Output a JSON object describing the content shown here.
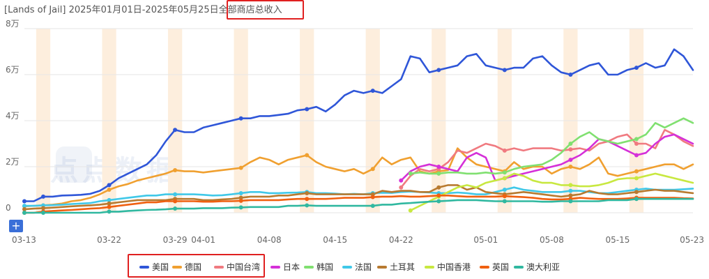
{
  "title": {
    "prefix": "[Lands of Jail] 2025年01月01日-2025年05月25日",
    "metric": "全部商店总收入"
  },
  "controls": {
    "zoom_label": "+"
  },
  "watermark": "点点数据",
  "colors": {
    "highlight_box": "#e02020",
    "weekend_band": "#fdeedd",
    "grid": "#e6e6e6",
    "axis_text": "#666666",
    "button": "#3a6fd8"
  },
  "chart_data": {
    "type": "line",
    "title": "全部商店总收入",
    "x": [
      "03-13",
      "03-14",
      "03-15",
      "03-16",
      "03-17",
      "03-18",
      "03-19",
      "03-20",
      "03-21",
      "03-22",
      "03-23",
      "03-24",
      "03-25",
      "03-26",
      "03-27",
      "03-28",
      "03-29",
      "03-30",
      "03-31",
      "04-01",
      "04-02",
      "04-03",
      "04-04",
      "04-05",
      "04-06",
      "04-07",
      "04-08",
      "04-09",
      "04-10",
      "04-11",
      "04-12",
      "04-13",
      "04-14",
      "04-15",
      "04-16",
      "04-17",
      "04-18",
      "04-19",
      "04-20",
      "04-21",
      "04-22",
      "04-23",
      "04-24",
      "04-25",
      "04-26",
      "04-27",
      "04-28",
      "04-29",
      "04-30",
      "05-01",
      "05-02",
      "05-03",
      "05-04",
      "05-05",
      "05-06",
      "05-07",
      "05-08",
      "05-09",
      "05-10",
      "05-11",
      "05-12",
      "05-13",
      "05-14",
      "05-15",
      "05-16",
      "05-17",
      "05-18",
      "05-19",
      "05-20",
      "05-21",
      "05-22",
      "05-23"
    ],
    "x_tick_labels": [
      "03-13",
      "03-22",
      "03-29",
      "04-01",
      "04-08",
      "04-15",
      "04-22",
      "05-01",
      "05-08",
      "05-15",
      "05-23"
    ],
    "y_tick_labels": [
      "0",
      "2万",
      "4万",
      "6万",
      "8万"
    ],
    "ylim": [
      0,
      80000
    ],
    "grid": true,
    "legend_position": "bottom",
    "weekend_bands": [
      "03-15",
      "03-22",
      "03-29",
      "04-05",
      "04-12",
      "04-19",
      "04-26",
      "05-03",
      "05-10",
      "05-17"
    ],
    "series": [
      {
        "name": "美国",
        "color": "#2f56d8",
        "values": [
          5000,
          5000,
          7000,
          7000,
          7500,
          7600,
          7800,
          8200,
          9500,
          12000,
          15000,
          17000,
          19000,
          21000,
          25000,
          31000,
          36000,
          35000,
          35000,
          37000,
          38000,
          39000,
          40000,
          41000,
          41000,
          42000,
          42000,
          42500,
          43000,
          44500,
          45000,
          46000,
          44000,
          47000,
          51000,
          53000,
          52000,
          53000,
          52000,
          55000,
          58000,
          68000,
          67000,
          61000,
          62000,
          63000,
          64000,
          68000,
          69000,
          64000,
          63000,
          62000,
          63000,
          63000,
          67000,
          68000,
          64000,
          61000,
          60000,
          62000,
          64000,
          65000,
          60000,
          60000,
          62000,
          63000,
          65000,
          63000,
          64000,
          71000,
          68000,
          62000
        ]
      },
      {
        "name": "德国",
        "color": "#f0a030",
        "values": [
          2800,
          3000,
          3200,
          3500,
          4000,
          5000,
          5500,
          6500,
          8000,
          10000,
          11500,
          12500,
          14000,
          15000,
          16000,
          17000,
          18500,
          18000,
          18000,
          17500,
          18000,
          18500,
          19000,
          19500,
          22000,
          24000,
          23000,
          21000,
          23000,
          24000,
          25000,
          22000,
          20000,
          19000,
          18000,
          19000,
          17000,
          19000,
          24000,
          21000,
          23000,
          24000,
          18000,
          17000,
          18000,
          18500,
          28000,
          24000,
          21000,
          20000,
          19000,
          18000,
          22000,
          19000,
          20000,
          20000,
          17000,
          19000,
          20000,
          19000,
          21000,
          24000,
          17000,
          16000,
          17000,
          18000,
          19000,
          20000,
          21000,
          21000,
          19000,
          21000
        ]
      },
      {
        "name": "中国台湾",
        "color": "#f07a80",
        "values": [
          null,
          null,
          null,
          null,
          null,
          null,
          null,
          null,
          null,
          null,
          null,
          null,
          null,
          null,
          null,
          null,
          null,
          null,
          null,
          null,
          null,
          null,
          null,
          null,
          null,
          null,
          null,
          null,
          null,
          null,
          null,
          null,
          null,
          null,
          null,
          null,
          null,
          null,
          null,
          null,
          11000,
          16000,
          19000,
          18000,
          19000,
          22000,
          27000,
          26000,
          28000,
          30000,
          29000,
          27000,
          28000,
          27000,
          28000,
          28000,
          28000,
          27000,
          27500,
          28000,
          27000,
          30000,
          31000,
          33000,
          34000,
          30000,
          30000,
          28000,
          36000,
          34000,
          31000,
          29000
        ]
      },
      {
        "name": "日本",
        "color": "#d530d8",
        "values": [
          null,
          null,
          null,
          null,
          null,
          null,
          null,
          null,
          null,
          null,
          null,
          null,
          null,
          null,
          null,
          null,
          null,
          null,
          null,
          null,
          null,
          null,
          null,
          null,
          null,
          null,
          null,
          null,
          null,
          null,
          null,
          null,
          null,
          null,
          null,
          null,
          null,
          null,
          null,
          null,
          14000,
          18000,
          20000,
          21000,
          20000,
          19000,
          18000,
          24000,
          26000,
          24000,
          14000,
          15000,
          16000,
          17000,
          18000,
          19000,
          20000,
          21000,
          23000,
          25000,
          28000,
          32000,
          31000,
          29000,
          27000,
          25000,
          26000,
          30000,
          33000,
          34000,
          32000,
          30000
        ]
      },
      {
        "name": "韩国",
        "color": "#80e070",
        "values": [
          null,
          null,
          null,
          null,
          null,
          null,
          null,
          null,
          null,
          null,
          null,
          null,
          null,
          null,
          null,
          null,
          null,
          null,
          null,
          null,
          null,
          null,
          null,
          null,
          null,
          null,
          null,
          null,
          null,
          null,
          null,
          null,
          null,
          null,
          null,
          null,
          null,
          null,
          null,
          null,
          null,
          17000,
          17500,
          17000,
          17000,
          17500,
          17500,
          17000,
          17000,
          17500,
          17000,
          17500,
          19000,
          20000,
          20500,
          21000,
          23000,
          26000,
          30000,
          33000,
          35000,
          32000,
          31000,
          30000,
          31000,
          32000,
          34000,
          39000,
          37000,
          39000,
          41000,
          39000
        ]
      },
      {
        "name": "法国",
        "color": "#40c8e8",
        "values": [
          3000,
          3000,
          3200,
          3300,
          3500,
          3800,
          4000,
          4200,
          5000,
          5500,
          6000,
          6500,
          7000,
          7500,
          7500,
          8000,
          8000,
          8000,
          8000,
          7800,
          7500,
          7600,
          8000,
          8500,
          9000,
          9000,
          8500,
          8500,
          8700,
          8800,
          9000,
          8500,
          8500,
          8300,
          8000,
          8200,
          8000,
          8500,
          8700,
          8600,
          9000,
          9200,
          9000,
          8800,
          8500,
          8500,
          8800,
          8500,
          8000,
          8000,
          9000,
          10000,
          11000,
          10000,
          9500,
          9000,
          9000,
          9000,
          9500,
          9500,
          9000,
          8500,
          8500,
          9000,
          9500,
          10000,
          10500,
          10000,
          10000,
          10000,
          10200,
          10500
        ]
      },
      {
        "name": "土耳其",
        "color": "#b87a30",
        "values": [
          1500,
          1800,
          2000,
          2200,
          2500,
          2800,
          3000,
          3200,
          3500,
          4000,
          4500,
          5000,
          5500,
          5500,
          5500,
          5500,
          6000,
          6000,
          6000,
          5500,
          5500,
          5800,
          6000,
          6500,
          7000,
          7000,
          7000,
          7500,
          7500,
          8000,
          8500,
          8000,
          8000,
          8000,
          8000,
          8000,
          8000,
          8000,
          9500,
          9000,
          9500,
          9500,
          9000,
          9000,
          11000,
          12000,
          12000,
          10000,
          11000,
          9000,
          8500,
          8000,
          8500,
          9000,
          8500,
          8000,
          7500,
          7000,
          7500,
          8000,
          9500,
          8500,
          8000,
          8000,
          8500,
          9000,
          9500,
          10000,
          9500,
          9500,
          9000,
          8500
        ]
      },
      {
        "name": "中国香港",
        "color": "#c8e840",
        "values": [
          null,
          null,
          null,
          null,
          null,
          null,
          null,
          null,
          null,
          null,
          null,
          null,
          null,
          null,
          null,
          null,
          null,
          null,
          null,
          null,
          null,
          null,
          null,
          null,
          null,
          null,
          null,
          null,
          null,
          null,
          null,
          null,
          null,
          null,
          null,
          null,
          null,
          null,
          null,
          null,
          null,
          1000,
          3000,
          5000,
          7000,
          9000,
          11000,
          12000,
          11000,
          13000,
          14000,
          15000,
          17000,
          16000,
          14000,
          13000,
          13000,
          12000,
          12000,
          11500,
          11500,
          12000,
          13000,
          14500,
          15000,
          15000,
          16000,
          17000,
          16000,
          15000,
          14000,
          13000
        ]
      },
      {
        "name": "英国",
        "color": "#f06010",
        "values": [
          0,
          0,
          500,
          800,
          1000,
          1200,
          1500,
          1800,
          2000,
          2500,
          3000,
          3500,
          4000,
          4500,
          4500,
          5000,
          5000,
          5000,
          5000,
          4800,
          4800,
          5000,
          5000,
          5200,
          5500,
          5500,
          5500,
          5500,
          5800,
          6000,
          6000,
          6000,
          6000,
          6200,
          6500,
          6500,
          6500,
          6800,
          7000,
          7000,
          7200,
          7000,
          7000,
          7200,
          7500,
          7500,
          7200,
          7000,
          7000,
          7000,
          7000,
          7200,
          7000,
          6800,
          6500,
          6000,
          5800,
          5800,
          6000,
          6500,
          6200,
          6000,
          6000,
          6000,
          6200,
          6500,
          6500,
          6500,
          6500,
          6500,
          6300,
          6200
        ]
      },
      {
        "name": "澳大利亚",
        "color": "#30b8a0",
        "values": [
          0,
          0,
          0,
          0,
          0,
          0,
          0,
          0,
          0,
          500,
          500,
          800,
          1000,
          1200,
          1300,
          1500,
          1800,
          1800,
          1800,
          2000,
          2000,
          2000,
          2200,
          2300,
          2500,
          2500,
          2500,
          2500,
          3000,
          3000,
          3200,
          3000,
          3000,
          3000,
          3000,
          3000,
          3000,
          3000,
          3500,
          3500,
          4000,
          4200,
          4500,
          4800,
          5000,
          5200,
          5500,
          5500,
          5500,
          5200,
          5000,
          5000,
          5000,
          5000,
          5000,
          4800,
          4800,
          5000,
          5000,
          5000,
          5000,
          5000,
          5500,
          5500,
          5500,
          6000,
          6000,
          6000,
          6000,
          6000,
          6000,
          6000
        ]
      }
    ]
  }
}
